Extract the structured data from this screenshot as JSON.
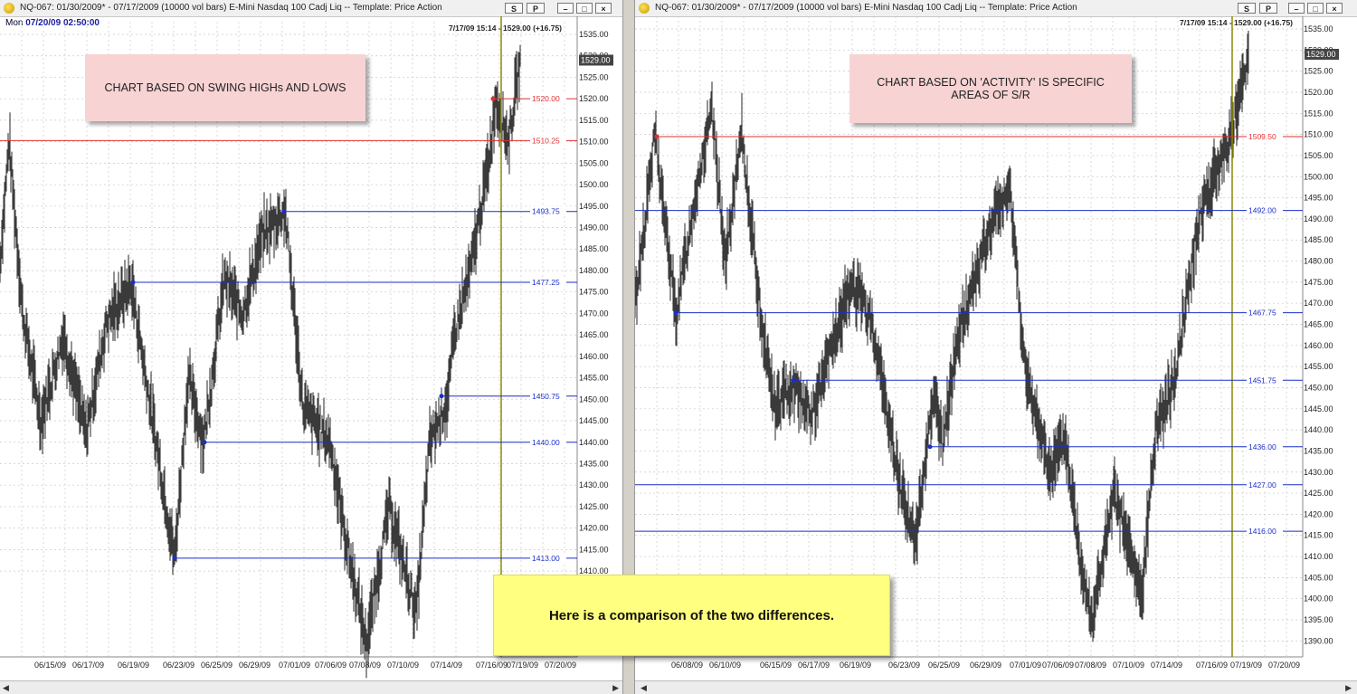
{
  "colors": {
    "price_bar": "#3a3a3a",
    "support_blue": "#1a2ec8",
    "resistance_red": "#e03030",
    "cursor_olive": "#8a8a00",
    "grid": "#c8c8c8"
  },
  "left": {
    "title": "NQ-067:  01/30/2009* - 07/17/2009  (10000 vol bars)   E-Mini Nasdaq 100 Cadj Liq  --  Template: Price Action",
    "datetime_day": "Mon",
    "datetime_value": "07/20/09 02:50:00",
    "cursor_readout": "7/17/09 15:14 - 1529.00 (+16.75)",
    "last_price": "1529.00",
    "btn_s": "S",
    "btn_p": "P",
    "note": "CHART BASED ON SWING HIGHs AND LOWS",
    "price_ticks": [
      "1535.00",
      "1530.00",
      "1525.00",
      "1520.00",
      "1515.00",
      "1510.00",
      "1505.00",
      "1500.00",
      "1495.00",
      "1490.00",
      "1485.00",
      "1480.00",
      "1475.00",
      "1470.00",
      "1465.00",
      "1460.00",
      "1455.00",
      "1450.00",
      "1445.00",
      "1440.00",
      "1435.00",
      "1430.00",
      "1425.00",
      "1420.00",
      "1415.00",
      "1410.00"
    ],
    "date_ticks": [
      "06/15/09",
      "06/17/09",
      "06/19/09",
      "06/23/09",
      "06/25/09",
      "06/29/09",
      "07/01/09",
      "07/06/09",
      "07/08/09",
      "07/10/09",
      "07/14/09",
      "07/16/09",
      "07/19/09",
      "07/20/09"
    ],
    "levels": [
      {
        "label": "1520.00",
        "color": "red"
      },
      {
        "label": "1510.25",
        "color": "red"
      },
      {
        "label": "1493.75",
        "color": "blue"
      },
      {
        "label": "1477.25",
        "color": "blue"
      },
      {
        "label": "1450.75",
        "color": "blue"
      },
      {
        "label": "1440.00",
        "color": "blue"
      },
      {
        "label": "1413.00",
        "color": "blue"
      }
    ]
  },
  "right": {
    "title": "NQ-067:  01/30/2009* - 07/17/2009  (10000 vol bars)   E-Mini Nasdaq 100 Cadj Liq  --  Template: Price Action",
    "cursor_readout": "7/17/09 15:14 - 1529.00 (+16.75)",
    "last_price": "1529.00",
    "btn_s": "S",
    "btn_p": "P",
    "note": "CHART BASED ON 'ACTIVITY' IS SPECIFIC AREAS OF S/R",
    "price_ticks": [
      "1535.00",
      "1530.00",
      "1525.00",
      "1520.00",
      "1515.00",
      "1510.00",
      "1505.00",
      "1500.00",
      "1495.00",
      "1490.00",
      "1485.00",
      "1480.00",
      "1475.00",
      "1470.00",
      "1465.00",
      "1460.00",
      "1455.00",
      "1450.00",
      "1445.00",
      "1440.00",
      "1435.00",
      "1430.00",
      "1425.00",
      "1420.00",
      "1415.00",
      "1410.00",
      "1405.00",
      "1400.00",
      "1395.00",
      "1390.00"
    ],
    "date_ticks": [
      "06/08/09",
      "06/10/09",
      "06/15/09",
      "06/17/09",
      "06/19/09",
      "06/23/09",
      "06/25/09",
      "06/29/09",
      "07/01/09",
      "07/06/09",
      "07/08/09",
      "07/10/09",
      "07/14/09",
      "07/16/09",
      "07/19/09",
      "07/20/09"
    ],
    "levels": [
      {
        "label": "1509.50",
        "color": "red"
      },
      {
        "label": "1492.00",
        "color": "blue"
      },
      {
        "label": "1467.75",
        "color": "blue"
      },
      {
        "label": "1451.75",
        "color": "blue"
      },
      {
        "label": "1436.00",
        "color": "blue"
      },
      {
        "label": "1427.00",
        "color": "blue"
      },
      {
        "label": "1416.00",
        "color": "blue"
      }
    ]
  },
  "overlay_note": "Here is a comparison of the two differences."
}
